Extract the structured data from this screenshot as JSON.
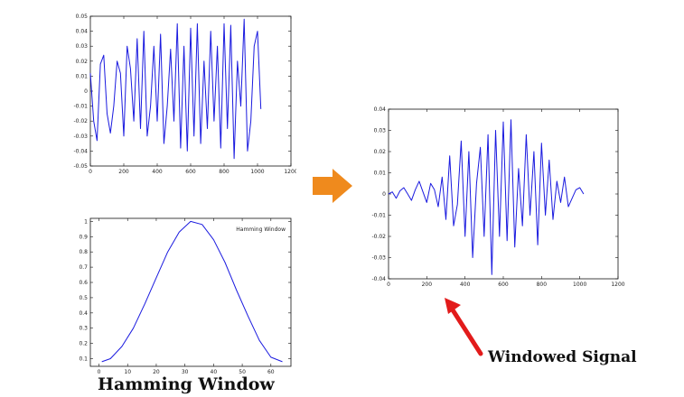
{
  "colors": {
    "signal": "#1a1adf",
    "orange_arrow": "#ef8a1d",
    "red_arrow": "#e21b1b",
    "axes": "#111111"
  },
  "chart_data": [
    {
      "id": "speech-signal",
      "type": "line",
      "title": "",
      "xlabel": "",
      "ylabel": "",
      "xlim": [
        0,
        1200
      ],
      "ylim": [
        -0.05,
        0.05
      ],
      "x_ticks": [
        0,
        200,
        400,
        600,
        800,
        1000,
        1200
      ],
      "y_ticks": [
        -0.05,
        -0.04,
        -0.03,
        -0.02,
        -0.01,
        0,
        0.01,
        0.02,
        0.03,
        0.04,
        0.05
      ],
      "x_tick_labels": [
        "0",
        "200",
        "400",
        "600",
        "800",
        "1000",
        "1200"
      ],
      "y_tick_labels": [
        "-0.05",
        "-0.04",
        "-0.03",
        "-0.02",
        "-0.01",
        "0",
        "0.01",
        "0.02",
        "0.03",
        "0.04",
        "0.05"
      ],
      "series": [
        {
          "x": [
            0,
            20,
            40,
            60,
            80,
            100,
            120,
            140,
            160,
            180,
            200,
            220,
            240,
            260,
            280,
            300,
            320,
            340,
            360,
            380,
            400,
            420,
            440,
            460,
            480,
            500,
            520,
            540,
            560,
            580,
            600,
            620,
            640,
            660,
            680,
            700,
            720,
            740,
            760,
            780,
            800,
            820,
            840,
            860,
            880,
            900,
            920,
            940,
            960,
            980,
            1000,
            1020
          ],
          "y": [
            0.012,
            -0.02,
            -0.033,
            0.018,
            0.024,
            -0.015,
            -0.028,
            -0.01,
            0.02,
            0.012,
            -0.03,
            0.03,
            0.015,
            -0.02,
            0.035,
            -0.025,
            0.04,
            -0.03,
            -0.01,
            0.03,
            -0.02,
            0.038,
            -0.035,
            -0.01,
            0.028,
            -0.02,
            0.045,
            -0.038,
            0.03,
            -0.04,
            0.042,
            -0.03,
            0.045,
            -0.035,
            0.02,
            -0.025,
            0.04,
            -0.02,
            0.03,
            -0.038,
            0.045,
            -0.025,
            0.044,
            -0.045,
            0.02,
            -0.01,
            0.048,
            -0.04,
            -0.02,
            0.03,
            0.04,
            -0.012
          ]
        }
      ]
    },
    {
      "id": "hamming-window",
      "type": "line",
      "title": "",
      "xlabel": "",
      "ylabel": "",
      "xlim": [
        -3,
        67
      ],
      "ylim": [
        0.05,
        1.02
      ],
      "x_ticks": [
        0,
        10,
        20,
        30,
        40,
        50,
        60
      ],
      "y_ticks": [
        0.1,
        0.2,
        0.3,
        0.4,
        0.5,
        0.6,
        0.7,
        0.8,
        0.9,
        1
      ],
      "x_tick_labels": [
        "0",
        "10",
        "20",
        "30",
        "40",
        "50",
        "60"
      ],
      "y_tick_labels": [
        "0.1",
        "0.2",
        "0.3",
        "0.4",
        "0.5",
        "0.6",
        "0.7",
        "0.8",
        "0.9",
        "1"
      ],
      "legend": "top-right",
      "series": [
        {
          "name": "Hamming Window",
          "x": [
            1,
            4,
            8,
            12,
            16,
            20,
            24,
            28,
            32,
            36,
            40,
            44,
            48,
            52,
            56,
            60,
            64
          ],
          "y": [
            0.08,
            0.1,
            0.18,
            0.3,
            0.46,
            0.63,
            0.8,
            0.93,
            1.0,
            0.98,
            0.88,
            0.73,
            0.55,
            0.38,
            0.22,
            0.11,
            0.08
          ]
        }
      ]
    },
    {
      "id": "windowed-signal",
      "type": "line",
      "title": "",
      "xlabel": "",
      "ylabel": "",
      "xlim": [
        0,
        1200
      ],
      "ylim": [
        -0.04,
        0.04
      ],
      "x_ticks": [
        0,
        200,
        400,
        600,
        800,
        1000,
        1200
      ],
      "y_ticks": [
        -0.04,
        -0.03,
        -0.02,
        -0.01,
        0,
        0.01,
        0.02,
        0.03,
        0.04
      ],
      "x_tick_labels": [
        "0",
        "200",
        "400",
        "600",
        "800",
        "1000",
        "1200"
      ],
      "y_tick_labels": [
        "-0.04",
        "-0.03",
        "-0.02",
        "-0.01",
        "0",
        "0.01",
        "0.02",
        "0.03",
        "0.04"
      ],
      "series": [
        {
          "x": [
            0,
            20,
            40,
            60,
            80,
            100,
            120,
            140,
            160,
            180,
            200,
            220,
            240,
            260,
            280,
            300,
            320,
            340,
            360,
            380,
            400,
            420,
            440,
            460,
            480,
            500,
            520,
            540,
            560,
            580,
            600,
            620,
            640,
            660,
            680,
            700,
            720,
            740,
            760,
            780,
            800,
            820,
            840,
            860,
            880,
            900,
            920,
            940,
            960,
            980,
            1000,
            1020
          ],
          "y": [
            0.0,
            0.001,
            -0.002,
            0.0015,
            0.003,
            0.0,
            -0.003,
            0.002,
            0.006,
            0.001,
            -0.004,
            0.005,
            0.002,
            -0.006,
            0.008,
            -0.012,
            0.018,
            -0.015,
            -0.005,
            0.025,
            -0.02,
            0.02,
            -0.03,
            0.005,
            0.022,
            -0.02,
            0.028,
            -0.038,
            0.03,
            -0.02,
            0.034,
            -0.022,
            0.035,
            -0.025,
            0.012,
            -0.015,
            0.028,
            -0.01,
            0.02,
            -0.024,
            0.024,
            -0.01,
            0.016,
            -0.012,
            0.006,
            -0.004,
            0.008,
            -0.006,
            -0.002,
            0.002,
            0.003,
            0.0
          ]
        }
      ]
    }
  ],
  "captions": {
    "hamming": "Hamming Window",
    "windowed": "Windowed Signal"
  }
}
